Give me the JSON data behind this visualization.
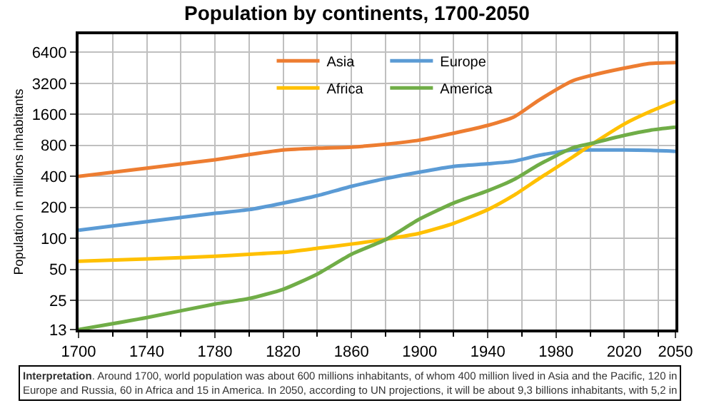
{
  "chart_data": {
    "type": "line",
    "title": "Population by continents, 1700-2050",
    "ylabel": "Population in millions inhabitants",
    "x": [
      1700,
      1740,
      1780,
      1800,
      1820,
      1840,
      1860,
      1880,
      1900,
      1920,
      1940,
      1955,
      1970,
      1990,
      2000,
      2020,
      2035,
      2050
    ],
    "series": [
      {
        "name": "Asia",
        "color": "#ed7d31",
        "values": [
          400,
          480,
          580,
          650,
          720,
          750,
          770,
          820,
          900,
          1050,
          1250,
          1500,
          2200,
          3400,
          3800,
          4500,
          5000,
          5100
        ]
      },
      {
        "name": "Europe",
        "color": "#5b9bd5",
        "values": [
          120,
          145,
          175,
          190,
          220,
          260,
          320,
          380,
          440,
          500,
          530,
          560,
          640,
          720,
          720,
          720,
          715,
          700
        ]
      },
      {
        "name": "Africa",
        "color": "#ffc000",
        "values": [
          60,
          63,
          67,
          70,
          73,
          80,
          88,
          98,
          112,
          140,
          190,
          260,
          380,
          620,
          800,
          1290,
          1700,
          2150
        ]
      },
      {
        "name": "America",
        "color": "#70ad47",
        "values": [
          13,
          17,
          23,
          26,
          32,
          45,
          70,
          97,
          154,
          220,
          290,
          370,
          520,
          760,
          830,
          1000,
          1120,
          1200
        ]
      }
    ],
    "xlim": [
      1700,
      2050
    ],
    "xticks": [
      1700,
      1740,
      1780,
      1820,
      1860,
      1900,
      1940,
      1980,
      2020,
      2050
    ],
    "ylim": [
      13,
      9600
    ],
    "yticks": [
      13,
      25,
      50,
      100,
      200,
      400,
      800,
      1600,
      3200,
      6400
    ],
    "log": "y",
    "grid": true,
    "legend": "top",
    "marker": "none",
    "line_style": "solid",
    "annotations": [
      "Interpretation. Around 1700, world population was about 600 millions inhabitants, of whom 400 million lived in Asia and the Pacific, 120 in Europe and Russia, 60 in Africa and 15 in America. In 2050, according to UN projections, it will be about 9,3 billions inhabitants, with 5,2 in"
    ]
  }
}
